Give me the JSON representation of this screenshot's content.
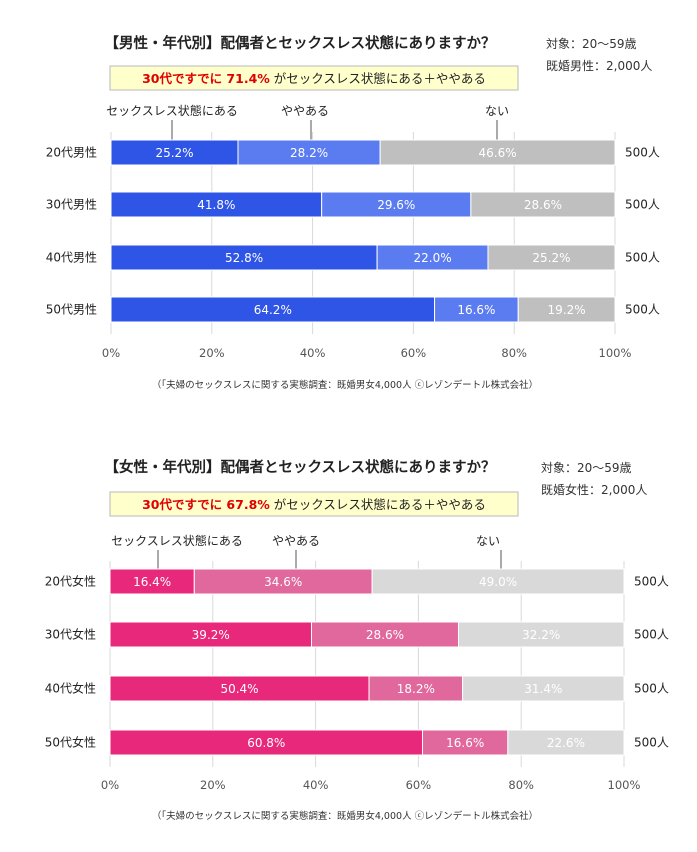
{
  "chart_data": [
    {
      "type": "bar",
      "orientation": "horizontal",
      "stacked": true,
      "percent": true,
      "title": "【男性・年代別】配偶者とセックスレス状態にありますか？",
      "target_line1": "対象：20～59歳",
      "target_line2": "既婚男性：2,000人",
      "highlight_red": "30代ですでに 71.4%",
      "highlight_rest": " がセックスレス状態にある＋ややある",
      "categories": [
        "20代男性",
        "30代男性",
        "40代男性",
        "50代男性"
      ],
      "series": [
        {
          "name": "セックスレス状態にある",
          "values": [
            25.2,
            41.8,
            52.8,
            64.2
          ]
        },
        {
          "name": "ややある",
          "values": [
            28.2,
            29.6,
            22.0,
            16.6
          ]
        },
        {
          "name": "ない",
          "values": [
            46.6,
            28.6,
            25.2,
            19.2
          ]
        }
      ],
      "data_labels": [
        [
          "25.2%",
          "41.8%",
          "52.8%",
          "64.2%"
        ],
        [
          "28.2%",
          "29.6%",
          "22.0%",
          "16.6%"
        ],
        [
          "46.6%",
          "28.6%",
          "25.2%",
          "19.2%"
        ]
      ],
      "counts": [
        "500人",
        "500人",
        "500人",
        "500人"
      ],
      "xticks": [
        "0%",
        "20%",
        "40%",
        "60%",
        "80%",
        "100%"
      ],
      "xlim": [
        0,
        100
      ],
      "colors": [
        "#2f55e6",
        "#5b7cf0",
        "#bfbfbf"
      ],
      "label_colors": [
        "#ffffff",
        "#ffffff",
        "#ffffff"
      ],
      "source": "（「夫婦のセックスレスに関する実態調査：既婚男女4,000人 ⓒレゾンデートル株式会社）"
    },
    {
      "type": "bar",
      "orientation": "horizontal",
      "stacked": true,
      "percent": true,
      "title": "【女性・年代別】配偶者とセックスレス状態にありますか？",
      "target_line1": "対象：20～59歳",
      "target_line2": "既婚女性：2,000人",
      "highlight_red": "30代ですでに 67.8%",
      "highlight_rest": " がセックスレス状態にある＋ややある",
      "categories": [
        "20代女性",
        "30代女性",
        "40代女性",
        "50代女性"
      ],
      "series": [
        {
          "name": "セックスレス状態にある",
          "values": [
            16.4,
            39.2,
            50.4,
            60.8
          ]
        },
        {
          "name": "ややある",
          "values": [
            34.6,
            28.6,
            18.2,
            16.6
          ]
        },
        {
          "name": "ない",
          "values": [
            49.0,
            32.2,
            31.4,
            22.6
          ]
        }
      ],
      "data_labels": [
        [
          "16.4%",
          "39.2%",
          "50.4%",
          "60.8%"
        ],
        [
          "34.6%",
          "28.6%",
          "18.2%",
          "16.6%"
        ],
        [
          "49.0%",
          "32.2%",
          "31.4%",
          "22.6%"
        ]
      ],
      "counts": [
        "500人",
        "500人",
        "500人",
        "500人"
      ],
      "xticks": [
        "0%",
        "20%",
        "40%",
        "60%",
        "80%",
        "100%"
      ],
      "xlim": [
        0,
        100
      ],
      "colors": [
        "#e8287a",
        "#e0689c",
        "#d9d9d9"
      ],
      "label_colors": [
        "#ffffff",
        "#ffffff",
        "#ffffff"
      ],
      "source": "（「夫婦のセックスレスに関する実態調査：既婚男女4,000人 ⓒレゾンデートル株式会社）"
    }
  ]
}
